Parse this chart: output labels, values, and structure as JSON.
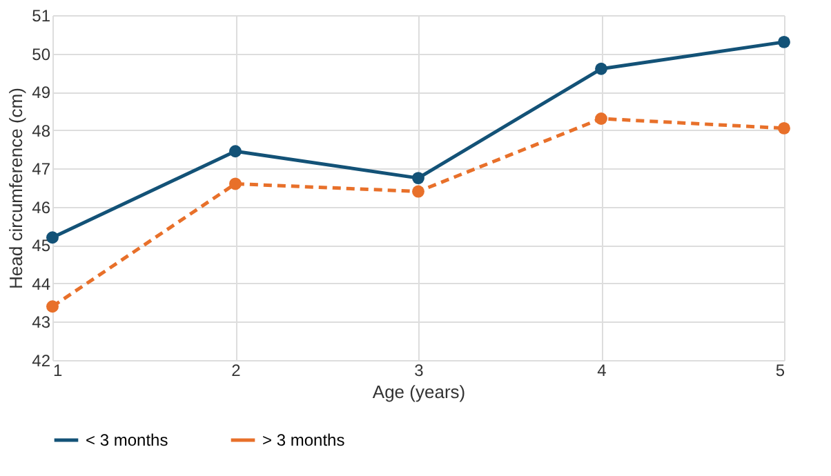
{
  "chart_data": {
    "type": "line",
    "xlabel": "Age (years)",
    "ylabel": "Head circumference (cm)",
    "x": [
      1,
      2,
      3,
      4,
      5
    ],
    "xlim": [
      1,
      5
    ],
    "xticks": [
      1,
      2,
      3,
      4,
      5
    ],
    "ylim": [
      42,
      51
    ],
    "yticks": [
      42,
      43,
      44,
      45,
      46,
      47,
      48,
      49,
      50,
      51
    ],
    "grid": true,
    "legend": "bottom",
    "marker": "circle",
    "series": [
      {
        "name": "< 3 months",
        "color": "#135277",
        "line_style": "solid",
        "values": [
          45.2,
          47.45,
          46.75,
          49.6,
          50.3
        ]
      },
      {
        "name": "> 3 months",
        "color": "#e8702a",
        "line_style": "dashed",
        "values": [
          43.4,
          46.6,
          46.4,
          48.3,
          48.05
        ]
      }
    ]
  }
}
